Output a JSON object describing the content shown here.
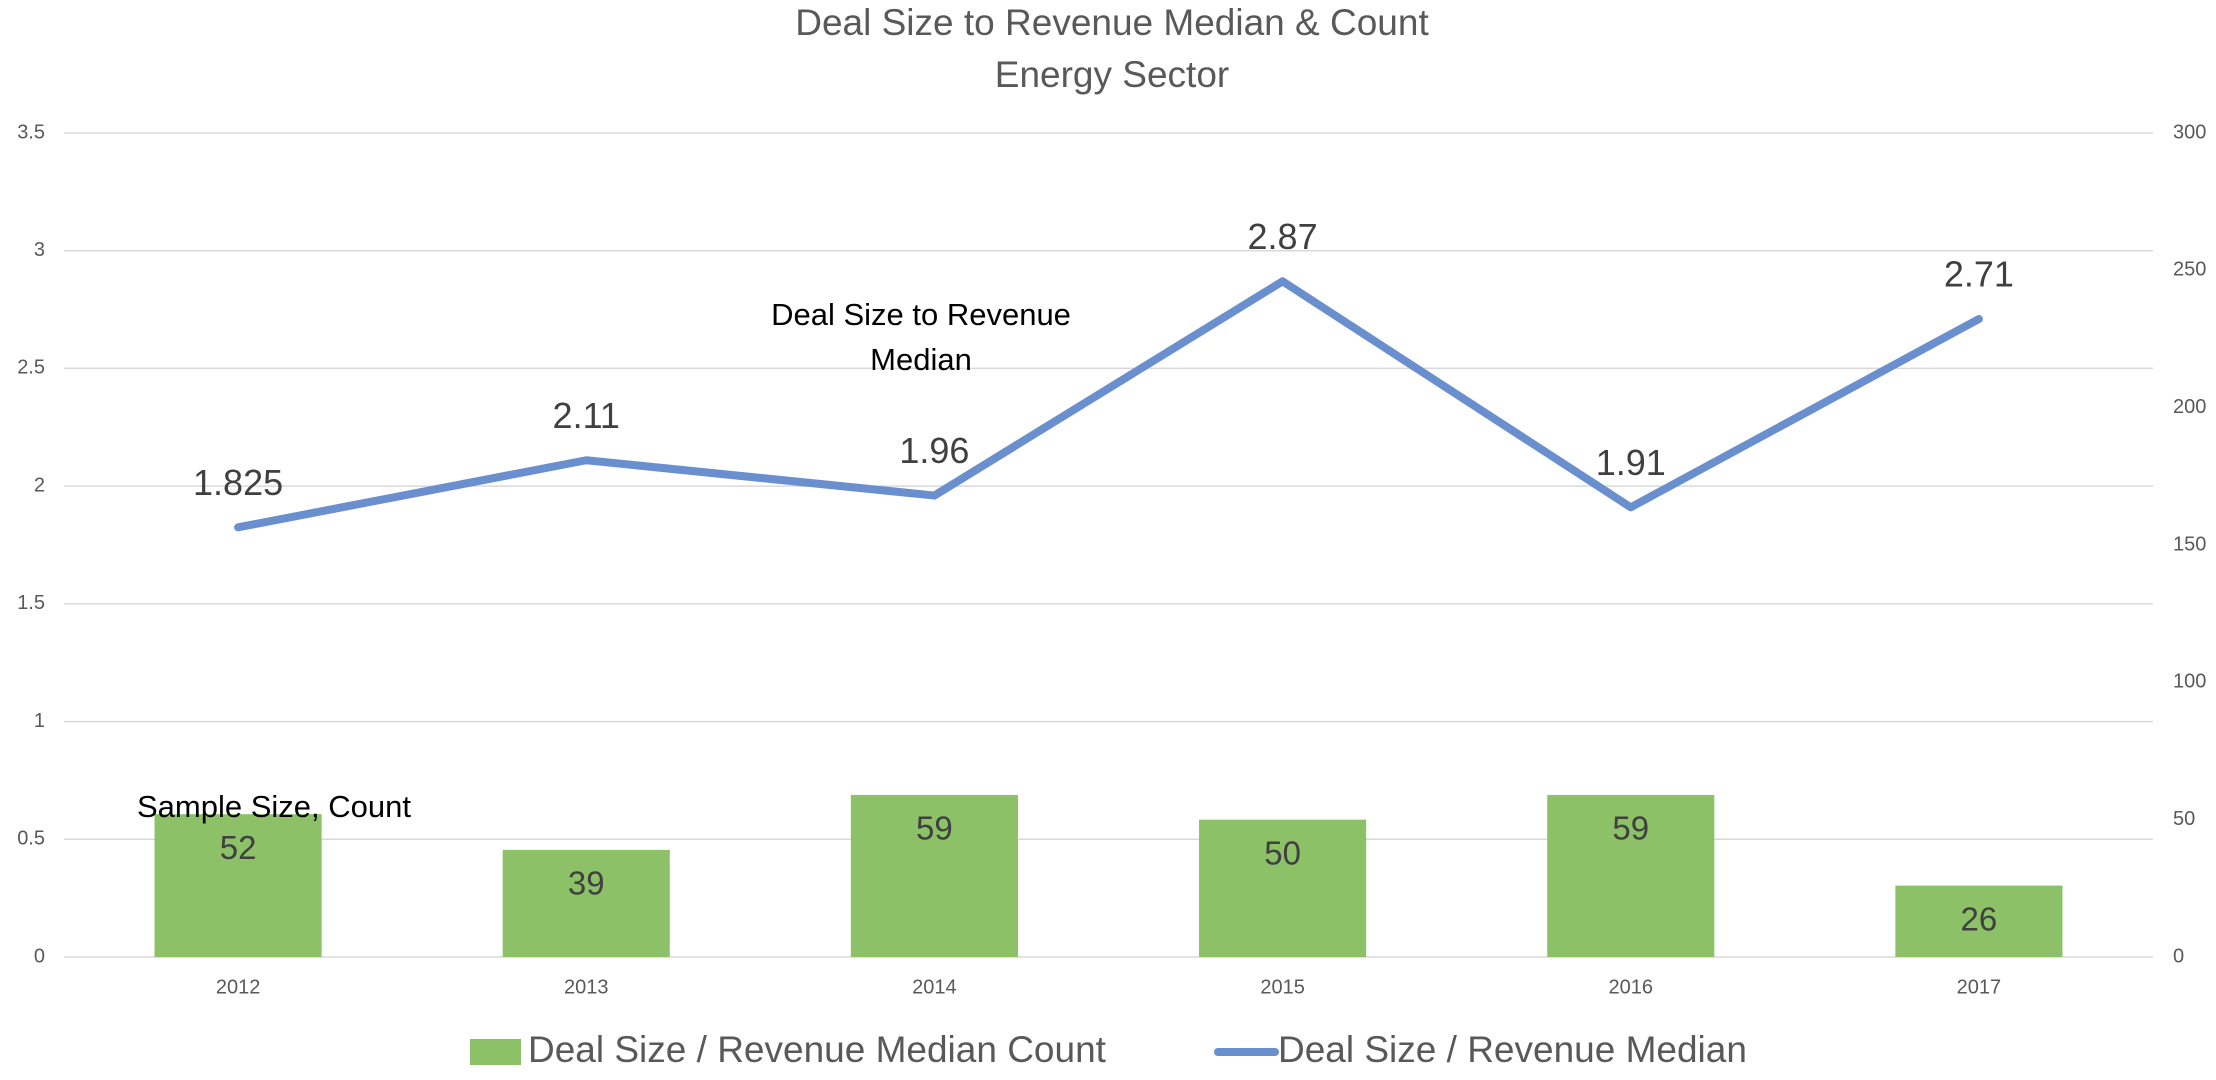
{
  "chart_data": {
    "type": "bar_line",
    "title": "Deal Size to Revenue Median & Count",
    "subtitle": "Energy Sector",
    "categories": [
      "2012",
      "2013",
      "2014",
      "2015",
      "2016",
      "2017"
    ],
    "series": [
      {
        "name": "Deal Size / Revenue Median Count",
        "type": "bar",
        "axis": "y2",
        "color": "#8cc168",
        "values": [
          52,
          39,
          59,
          50,
          59,
          26
        ]
      },
      {
        "name": "Deal Size / Revenue Median",
        "type": "line",
        "axis": "y",
        "color": "#6a8fcf",
        "values": [
          1.825,
          2.11,
          1.96,
          2.87,
          1.91,
          2.71
        ]
      }
    ],
    "annotations": [
      "Deal Size to Revenue Median",
      "Sample Size, Count"
    ],
    "ylim": [
      0,
      3.5
    ],
    "yticks": [
      0,
      0.5,
      1,
      1.5,
      2,
      2.5,
      3,
      3.5
    ],
    "y2lim": [
      0,
      300
    ],
    "y2ticks": [
      0,
      50,
      100,
      150,
      200,
      250,
      300
    ],
    "grid": true,
    "legend": "bottom"
  }
}
